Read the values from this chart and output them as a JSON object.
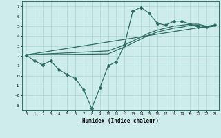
{
  "xlabel": "Humidex (Indice chaleur)",
  "xlim": [
    -0.5,
    23.5
  ],
  "ylim": [
    -3.5,
    7.5
  ],
  "xticks": [
    0,
    1,
    2,
    3,
    4,
    5,
    6,
    7,
    8,
    9,
    10,
    11,
    12,
    13,
    14,
    15,
    16,
    17,
    18,
    19,
    20,
    21,
    22,
    23
  ],
  "yticks": [
    -3,
    -2,
    -1,
    0,
    1,
    2,
    3,
    4,
    5,
    6,
    7
  ],
  "bg_color": "#ceecea",
  "line_color": "#2d6e63",
  "grid_color": "#a8d4d0",
  "line1_x": [
    0,
    1,
    2,
    3,
    4,
    5,
    6,
    7,
    8,
    9,
    10,
    11,
    12,
    13,
    14,
    15,
    16,
    17,
    18,
    19,
    20,
    21,
    22,
    23
  ],
  "line1_y": [
    2.1,
    1.5,
    1.1,
    1.5,
    0.6,
    0.1,
    -0.3,
    -1.4,
    -3.3,
    -1.2,
    1.0,
    1.4,
    3.1,
    6.5,
    6.9,
    6.3,
    5.3,
    5.1,
    5.5,
    5.5,
    5.2,
    4.9,
    4.9,
    5.1
  ],
  "line2_x": [
    0,
    23
  ],
  "line2_y": [
    2.1,
    5.1
  ],
  "line3_x": [
    0,
    10,
    12,
    13,
    14,
    15,
    16,
    17,
    18,
    19,
    20,
    21,
    22,
    23
  ],
  "line3_y": [
    2.1,
    2.5,
    3.1,
    3.5,
    3.9,
    4.3,
    4.6,
    4.8,
    5.0,
    5.1,
    5.2,
    5.2,
    5.0,
    5.1
  ],
  "line4_x": [
    0,
    10,
    12,
    13,
    14,
    15,
    16,
    17,
    18,
    19,
    20,
    21,
    22,
    23
  ],
  "line4_y": [
    2.1,
    2.2,
    2.9,
    3.3,
    3.7,
    4.1,
    4.4,
    4.6,
    4.8,
    4.9,
    5.1,
    5.1,
    4.9,
    5.0
  ]
}
